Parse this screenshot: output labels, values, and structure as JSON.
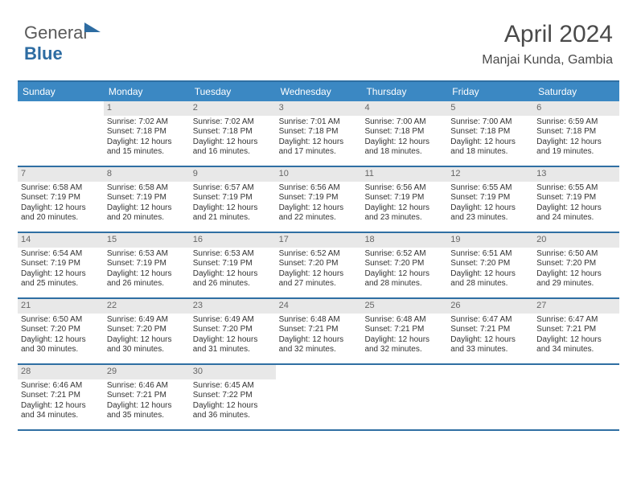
{
  "logo": {
    "text1": "General",
    "text2": "Blue"
  },
  "title": "April 2024",
  "location": "Manjai Kunda, Gambia",
  "colors": {
    "header_bg": "#3b88c3",
    "header_border": "#2f6fa3",
    "daynum_bg": "#e8e8e8",
    "text": "#333333",
    "title_color": "#4a4a4a"
  },
  "typography": {
    "title_fontsize": 30,
    "location_fontsize": 16,
    "header_fontsize": 12,
    "daynum_fontsize": 11,
    "body_fontsize": 10
  },
  "daysOfWeek": [
    "Sunday",
    "Monday",
    "Tuesday",
    "Wednesday",
    "Thursday",
    "Friday",
    "Saturday"
  ],
  "weeks": [
    [
      null,
      {
        "n": "1",
        "sr": "Sunrise: 7:02 AM",
        "ss": "Sunset: 7:18 PM",
        "dl1": "Daylight: 12 hours",
        "dl2": "and 15 minutes."
      },
      {
        "n": "2",
        "sr": "Sunrise: 7:02 AM",
        "ss": "Sunset: 7:18 PM",
        "dl1": "Daylight: 12 hours",
        "dl2": "and 16 minutes."
      },
      {
        "n": "3",
        "sr": "Sunrise: 7:01 AM",
        "ss": "Sunset: 7:18 PM",
        "dl1": "Daylight: 12 hours",
        "dl2": "and 17 minutes."
      },
      {
        "n": "4",
        "sr": "Sunrise: 7:00 AM",
        "ss": "Sunset: 7:18 PM",
        "dl1": "Daylight: 12 hours",
        "dl2": "and 18 minutes."
      },
      {
        "n": "5",
        "sr": "Sunrise: 7:00 AM",
        "ss": "Sunset: 7:18 PM",
        "dl1": "Daylight: 12 hours",
        "dl2": "and 18 minutes."
      },
      {
        "n": "6",
        "sr": "Sunrise: 6:59 AM",
        "ss": "Sunset: 7:18 PM",
        "dl1": "Daylight: 12 hours",
        "dl2": "and 19 minutes."
      }
    ],
    [
      {
        "n": "7",
        "sr": "Sunrise: 6:58 AM",
        "ss": "Sunset: 7:19 PM",
        "dl1": "Daylight: 12 hours",
        "dl2": "and 20 minutes."
      },
      {
        "n": "8",
        "sr": "Sunrise: 6:58 AM",
        "ss": "Sunset: 7:19 PM",
        "dl1": "Daylight: 12 hours",
        "dl2": "and 20 minutes."
      },
      {
        "n": "9",
        "sr": "Sunrise: 6:57 AM",
        "ss": "Sunset: 7:19 PM",
        "dl1": "Daylight: 12 hours",
        "dl2": "and 21 minutes."
      },
      {
        "n": "10",
        "sr": "Sunrise: 6:56 AM",
        "ss": "Sunset: 7:19 PM",
        "dl1": "Daylight: 12 hours",
        "dl2": "and 22 minutes."
      },
      {
        "n": "11",
        "sr": "Sunrise: 6:56 AM",
        "ss": "Sunset: 7:19 PM",
        "dl1": "Daylight: 12 hours",
        "dl2": "and 23 minutes."
      },
      {
        "n": "12",
        "sr": "Sunrise: 6:55 AM",
        "ss": "Sunset: 7:19 PM",
        "dl1": "Daylight: 12 hours",
        "dl2": "and 23 minutes."
      },
      {
        "n": "13",
        "sr": "Sunrise: 6:55 AM",
        "ss": "Sunset: 7:19 PM",
        "dl1": "Daylight: 12 hours",
        "dl2": "and 24 minutes."
      }
    ],
    [
      {
        "n": "14",
        "sr": "Sunrise: 6:54 AM",
        "ss": "Sunset: 7:19 PM",
        "dl1": "Daylight: 12 hours",
        "dl2": "and 25 minutes."
      },
      {
        "n": "15",
        "sr": "Sunrise: 6:53 AM",
        "ss": "Sunset: 7:19 PM",
        "dl1": "Daylight: 12 hours",
        "dl2": "and 26 minutes."
      },
      {
        "n": "16",
        "sr": "Sunrise: 6:53 AM",
        "ss": "Sunset: 7:19 PM",
        "dl1": "Daylight: 12 hours",
        "dl2": "and 26 minutes."
      },
      {
        "n": "17",
        "sr": "Sunrise: 6:52 AM",
        "ss": "Sunset: 7:20 PM",
        "dl1": "Daylight: 12 hours",
        "dl2": "and 27 minutes."
      },
      {
        "n": "18",
        "sr": "Sunrise: 6:52 AM",
        "ss": "Sunset: 7:20 PM",
        "dl1": "Daylight: 12 hours",
        "dl2": "and 28 minutes."
      },
      {
        "n": "19",
        "sr": "Sunrise: 6:51 AM",
        "ss": "Sunset: 7:20 PM",
        "dl1": "Daylight: 12 hours",
        "dl2": "and 28 minutes."
      },
      {
        "n": "20",
        "sr": "Sunrise: 6:50 AM",
        "ss": "Sunset: 7:20 PM",
        "dl1": "Daylight: 12 hours",
        "dl2": "and 29 minutes."
      }
    ],
    [
      {
        "n": "21",
        "sr": "Sunrise: 6:50 AM",
        "ss": "Sunset: 7:20 PM",
        "dl1": "Daylight: 12 hours",
        "dl2": "and 30 minutes."
      },
      {
        "n": "22",
        "sr": "Sunrise: 6:49 AM",
        "ss": "Sunset: 7:20 PM",
        "dl1": "Daylight: 12 hours",
        "dl2": "and 30 minutes."
      },
      {
        "n": "23",
        "sr": "Sunrise: 6:49 AM",
        "ss": "Sunset: 7:20 PM",
        "dl1": "Daylight: 12 hours",
        "dl2": "and 31 minutes."
      },
      {
        "n": "24",
        "sr": "Sunrise: 6:48 AM",
        "ss": "Sunset: 7:21 PM",
        "dl1": "Daylight: 12 hours",
        "dl2": "and 32 minutes."
      },
      {
        "n": "25",
        "sr": "Sunrise: 6:48 AM",
        "ss": "Sunset: 7:21 PM",
        "dl1": "Daylight: 12 hours",
        "dl2": "and 32 minutes."
      },
      {
        "n": "26",
        "sr": "Sunrise: 6:47 AM",
        "ss": "Sunset: 7:21 PM",
        "dl1": "Daylight: 12 hours",
        "dl2": "and 33 minutes."
      },
      {
        "n": "27",
        "sr": "Sunrise: 6:47 AM",
        "ss": "Sunset: 7:21 PM",
        "dl1": "Daylight: 12 hours",
        "dl2": "and 34 minutes."
      }
    ],
    [
      {
        "n": "28",
        "sr": "Sunrise: 6:46 AM",
        "ss": "Sunset: 7:21 PM",
        "dl1": "Daylight: 12 hours",
        "dl2": "and 34 minutes."
      },
      {
        "n": "29",
        "sr": "Sunrise: 6:46 AM",
        "ss": "Sunset: 7:21 PM",
        "dl1": "Daylight: 12 hours",
        "dl2": "and 35 minutes."
      },
      {
        "n": "30",
        "sr": "Sunrise: 6:45 AM",
        "ss": "Sunset: 7:22 PM",
        "dl1": "Daylight: 12 hours",
        "dl2": "and 36 minutes."
      },
      null,
      null,
      null,
      null
    ]
  ]
}
